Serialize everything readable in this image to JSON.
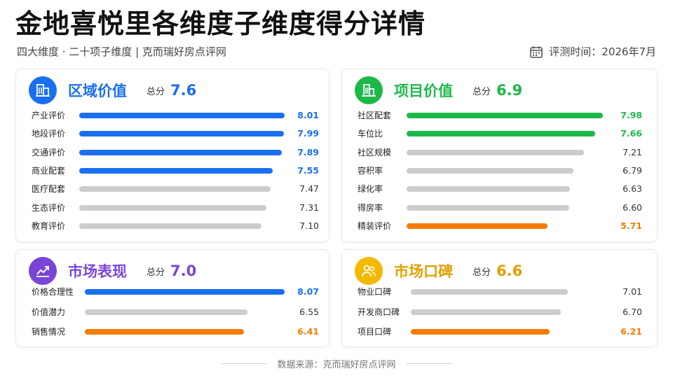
{
  "header": {
    "title": "金地喜悦里各维度子维度得分详情",
    "subtitle": "四大维度 · 二十项子维度 | 克而瑞好房点评网",
    "eval_time": "评测时间：2026年7月"
  },
  "colors": {
    "blue": "#1a6ff0",
    "green": "#1cb94a",
    "orange": "#f57c00",
    "gray": "#cccccc",
    "purple": "#7a45d6",
    "yellow": "#f5b800"
  },
  "chart_data": [
    {
      "type": "bar",
      "title": "区域价值",
      "total_label": "总分",
      "total": "7.6",
      "accent": "blue",
      "icon": "building-icon",
      "categories": [
        "产业评价",
        "地段评价",
        "交通评价",
        "商业配套",
        "医疗配套",
        "生态评价",
        "教育评价"
      ],
      "values": [
        8.01,
        7.99,
        7.89,
        7.55,
        7.47,
        7.31,
        7.1
      ],
      "highlight": [
        true,
        true,
        true,
        true,
        false,
        false,
        false
      ]
    },
    {
      "type": "bar",
      "title": "项目价值",
      "total_label": "总分",
      "total": "6.9",
      "accent": "green",
      "icon": "buildings-icon",
      "categories": [
        "社区配套",
        "车位比",
        "社区规模",
        "容积率",
        "绿化率",
        "得房率",
        "精装评价"
      ],
      "values": [
        7.98,
        7.66,
        7.21,
        6.79,
        6.63,
        6.6,
        5.71
      ],
      "highlight": [
        "accent",
        "accent",
        "none",
        "none",
        "none",
        "none",
        "low"
      ]
    },
    {
      "type": "bar",
      "title": "市场表现",
      "total_label": "总分",
      "total": "7.0",
      "accent": "purple",
      "icon": "trend-chart-icon",
      "categories": [
        "价格合理性",
        "价值潜力",
        "销售情况"
      ],
      "values": [
        8.07,
        6.55,
        6.41
      ],
      "highlight": [
        "blue",
        "none",
        "low"
      ]
    },
    {
      "type": "bar",
      "title": "市场口碑",
      "total_label": "总分",
      "total": "6.6",
      "accent": "yellow",
      "icon": "users-icon",
      "categories": [
        "物业口碑",
        "开发商口碑",
        "项目口碑"
      ],
      "values": [
        7.01,
        6.7,
        6.21
      ],
      "highlight": [
        "none",
        "none",
        "low"
      ]
    }
  ],
  "footer": {
    "source": "数据来源：克而瑞好房点评网"
  }
}
